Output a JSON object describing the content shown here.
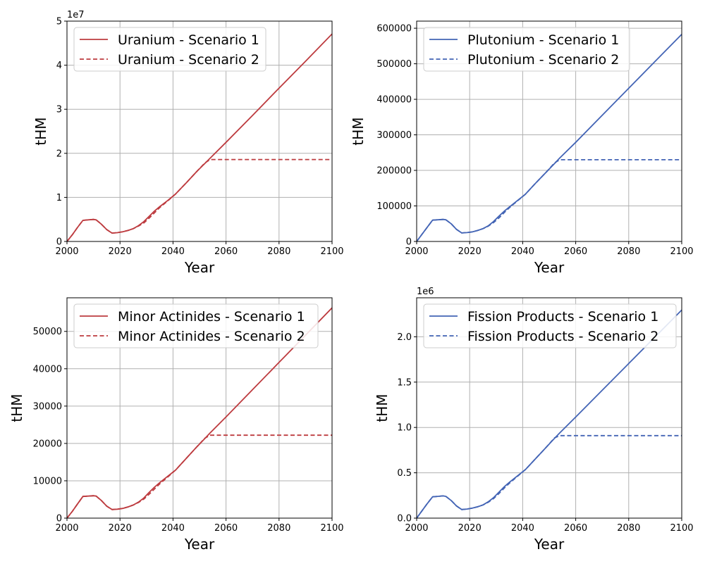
{
  "colors": {
    "red": "#bd3b3f",
    "blue": "#4364b5"
  },
  "chart_data": [
    {
      "type": "line",
      "xlabel": "Year",
      "ylabel": "tHM",
      "xlim": [
        2000,
        2100
      ],
      "ylim": [
        0,
        50000000
      ],
      "xticks": [
        2000,
        2020,
        2040,
        2060,
        2080,
        2100
      ],
      "xtick_labels": [
        "2000",
        "2020",
        "2040",
        "2060",
        "2080",
        "2100"
      ],
      "yticks": [
        0,
        10000000,
        20000000,
        30000000,
        40000000,
        50000000
      ],
      "ytick_labels": [
        "0",
        "1",
        "2",
        "3",
        "4",
        "5"
      ],
      "multiplier": "1e7",
      "grid": true,
      "legend_position": "top-left",
      "color": "red",
      "series": [
        {
          "name": "Uranium - Scenario 1",
          "style": "solid",
          "x": [
            2000,
            2002,
            2004,
            2006,
            2008,
            2010,
            2011,
            2013,
            2015,
            2017,
            2019,
            2021,
            2023,
            2025,
            2027,
            2029,
            2031,
            2033,
            2035,
            2038,
            2041,
            2045,
            2049,
            2052,
            2054,
            2060,
            2070,
            2080,
            2090,
            2100
          ],
          "y": [
            0,
            1500000,
            3200000,
            4800000,
            4900000,
            5000000,
            4900000,
            3900000,
            2700000,
            1900000,
            2000000,
            2200000,
            2500000,
            2900000,
            3600000,
            4500000,
            5700000,
            6900000,
            7900000,
            9300000,
            10800000,
            13300000,
            15900000,
            17700000,
            18900000,
            22500000,
            28600000,
            34800000,
            40900000,
            47100000
          ]
        },
        {
          "name": "Uranium - Scenario 2",
          "style": "dashed",
          "x": [
            2000,
            2002,
            2004,
            2006,
            2008,
            2010,
            2011,
            2013,
            2015,
            2017,
            2019,
            2021,
            2023,
            2025,
            2027,
            2029,
            2031,
            2033,
            2035,
            2038,
            2041,
            2045,
            2049,
            2052,
            2054,
            2060,
            2070,
            2080,
            2090,
            2100
          ],
          "y": [
            0,
            1500000,
            3200000,
            4800000,
            4900000,
            5000000,
            4900000,
            3900000,
            2700000,
            1900000,
            2000000,
            2200000,
            2500000,
            2900000,
            3500000,
            4200000,
            5300000,
            6500000,
            7700000,
            9200000,
            10800000,
            13300000,
            15900000,
            17800000,
            18600000,
            18600000,
            18600000,
            18600000,
            18600000,
            18600000
          ]
        }
      ]
    },
    {
      "type": "line",
      "xlabel": "Year",
      "ylabel": "tHM",
      "xlim": [
        2000,
        2100
      ],
      "ylim": [
        0,
        620000
      ],
      "xticks": [
        2000,
        2020,
        2040,
        2060,
        2080,
        2100
      ],
      "xtick_labels": [
        "2000",
        "2020",
        "2040",
        "2060",
        "2080",
        "2100"
      ],
      "yticks": [
        0,
        100000,
        200000,
        300000,
        400000,
        500000,
        600000
      ],
      "ytick_labels": [
        "0",
        "100000",
        "200000",
        "300000",
        "400000",
        "500000",
        "600000"
      ],
      "multiplier": "",
      "grid": true,
      "legend_position": "top-left",
      "color": "blue",
      "series": [
        {
          "name": "Plutonium - Scenario 1",
          "style": "solid",
          "x": [
            2000,
            2002,
            2004,
            2006,
            2008,
            2010,
            2011,
            2013,
            2015,
            2017,
            2019,
            2021,
            2023,
            2025,
            2027,
            2029,
            2031,
            2033,
            2035,
            2038,
            2041,
            2045,
            2049,
            2052,
            2054,
            2060,
            2070,
            2080,
            2090,
            2100
          ],
          "y": [
            0,
            20000,
            40000,
            60000,
            61000,
            62000,
            61000,
            50000,
            34000,
            24000,
            25000,
            27000,
            31000,
            36000,
            44000,
            56000,
            71000,
            85000,
            97000,
            115000,
            133000,
            165000,
            196000,
            219000,
            235000,
            279000,
            355000,
            431000,
            507000,
            583000
          ]
        },
        {
          "name": "Plutonium - Scenario 2",
          "style": "dashed",
          "x": [
            2000,
            2002,
            2004,
            2006,
            2008,
            2010,
            2011,
            2013,
            2015,
            2017,
            2019,
            2021,
            2023,
            2025,
            2027,
            2029,
            2031,
            2033,
            2035,
            2038,
            2041,
            2045,
            2049,
            2052,
            2054,
            2060,
            2070,
            2080,
            2090,
            2100
          ],
          "y": [
            0,
            20000,
            40000,
            60000,
            61000,
            62000,
            61000,
            50000,
            34000,
            24000,
            25000,
            27000,
            31000,
            36000,
            43000,
            53000,
            66000,
            81000,
            95000,
            114000,
            133000,
            165000,
            196000,
            221000,
            230000,
            230000,
            230000,
            230000,
            230000,
            230000
          ]
        }
      ]
    },
    {
      "type": "line",
      "xlabel": "Year",
      "ylabel": "tHM",
      "xlim": [
        2000,
        2100
      ],
      "ylim": [
        0,
        59000
      ],
      "xticks": [
        2000,
        2020,
        2040,
        2060,
        2080,
        2100
      ],
      "xtick_labels": [
        "2000",
        "2020",
        "2040",
        "2060",
        "2080",
        "2100"
      ],
      "yticks": [
        0,
        10000,
        20000,
        30000,
        40000,
        50000
      ],
      "ytick_labels": [
        "0",
        "10000",
        "20000",
        "30000",
        "40000",
        "50000"
      ],
      "multiplier": "",
      "grid": true,
      "legend_position": "top-left",
      "color": "red",
      "series": [
        {
          "name": "Minor Actinides - Scenario 1",
          "style": "solid",
          "x": [
            2000,
            2002,
            2004,
            2006,
            2008,
            2010,
            2011,
            2013,
            2015,
            2017,
            2019,
            2021,
            2023,
            2025,
            2027,
            2029,
            2031,
            2033,
            2035,
            2038,
            2041,
            2045,
            2049,
            2052,
            2054,
            2060,
            2070,
            2080,
            2090,
            2100
          ],
          "y": [
            0,
            1800,
            3800,
            5800,
            5900,
            6000,
            5900,
            4700,
            3200,
            2300,
            2400,
            2600,
            3000,
            3500,
            4300,
            5400,
            6900,
            8300,
            9500,
            11200,
            12900,
            16000,
            19100,
            21300,
            22800,
            27100,
            34400,
            41700,
            49000,
            56300
          ]
        },
        {
          "name": "Minor Actinides - Scenario 2",
          "style": "dashed",
          "x": [
            2000,
            2002,
            2004,
            2006,
            2008,
            2010,
            2011,
            2013,
            2015,
            2017,
            2019,
            2021,
            2023,
            2025,
            2027,
            2029,
            2031,
            2033,
            2035,
            2038,
            2041,
            2045,
            2049,
            2052,
            2054,
            2060,
            2070,
            2080,
            2090,
            2100
          ],
          "y": [
            0,
            1800,
            3800,
            5800,
            5900,
            6000,
            5900,
            4700,
            3200,
            2300,
            2400,
            2600,
            3000,
            3500,
            4200,
            5100,
            6400,
            7800,
            9200,
            11000,
            12900,
            16000,
            19100,
            21400,
            22200,
            22200,
            22200,
            22200,
            22200,
            22200
          ]
        }
      ]
    },
    {
      "type": "line",
      "xlabel": "Year",
      "ylabel": "tHM",
      "xlim": [
        2000,
        2100
      ],
      "ylim": [
        0,
        2430000
      ],
      "xticks": [
        2000,
        2020,
        2040,
        2060,
        2080,
        2100
      ],
      "xtick_labels": [
        "2000",
        "2020",
        "2040",
        "2060",
        "2080",
        "2100"
      ],
      "yticks": [
        0,
        500000,
        1000000,
        1500000,
        2000000
      ],
      "ytick_labels": [
        "0.0",
        "0.5",
        "1.0",
        "1.5",
        "2.0"
      ],
      "multiplier": "1e6",
      "grid": true,
      "legend_position": "top-left",
      "color": "blue",
      "series": [
        {
          "name": "Fission Products - Scenario 1",
          "style": "solid",
          "x": [
            2000,
            2002,
            2004,
            2006,
            2008,
            2010,
            2011,
            2013,
            2015,
            2017,
            2019,
            2021,
            2023,
            2025,
            2027,
            2029,
            2031,
            2033,
            2035,
            2038,
            2041,
            2045,
            2049,
            2052,
            2054,
            2060,
            2070,
            2080,
            2090,
            2100
          ],
          "y": [
            0,
            80000,
            160000,
            235000,
            240000,
            245000,
            240000,
            195000,
            135000,
            95000,
            100000,
            110000,
            125000,
            145000,
            180000,
            225000,
            285000,
            345000,
            395000,
            465000,
            535000,
            660000,
            785000,
            880000,
            940000,
            1115000,
            1410000,
            1705000,
            2000000,
            2295000
          ]
        },
        {
          "name": "Fission Products - Scenario 2",
          "style": "dashed",
          "x": [
            2000,
            2002,
            2004,
            2006,
            2008,
            2010,
            2011,
            2013,
            2015,
            2017,
            2019,
            2021,
            2023,
            2025,
            2027,
            2029,
            2031,
            2033,
            2035,
            2038,
            2041,
            2045,
            2049,
            2052,
            2054,
            2060,
            2070,
            2080,
            2090,
            2100
          ],
          "y": [
            0,
            80000,
            160000,
            235000,
            240000,
            245000,
            240000,
            195000,
            135000,
            95000,
            100000,
            110000,
            125000,
            145000,
            175000,
            215000,
            270000,
            330000,
            385000,
            460000,
            535000,
            660000,
            785000,
            885000,
            910000,
            910000,
            910000,
            910000,
            910000,
            910000
          ]
        }
      ]
    }
  ]
}
